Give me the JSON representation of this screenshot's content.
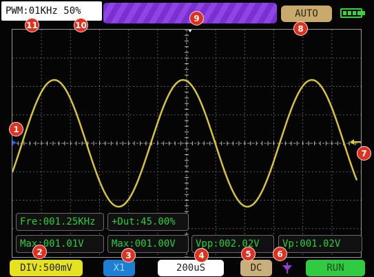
{
  "status": {
    "pwm_label": "PWM:01KHz 50%",
    "trigger_mode": "AUTO"
  },
  "measurements": {
    "frequency": "Fre:001.25KHz",
    "duty": "+Dut:45.00%",
    "max_left": "Max:001.01V",
    "max_right": "Max:001.00V",
    "vpp": "Vpp:002.02V",
    "vp": "Vp:001.02V"
  },
  "bottom_bar": {
    "volts_div": "DIV:500mV",
    "probe": "X1",
    "timebase": "200uS",
    "coupling": "DC",
    "run_state": "RUN"
  },
  "badges": [
    "1",
    "2",
    "3",
    "4",
    "5",
    "6",
    "7",
    "8",
    "9",
    "10",
    "11"
  ],
  "colors": {
    "waveform": "#d8c43a",
    "measurement_text": "#28d03a",
    "badge": "#e0301e",
    "trigger_bar": "#8a3fe0",
    "run": "#31cb42",
    "volts_div": "#e6e21d",
    "probe": "#1d7fd3",
    "channel_marker": "#2060ff",
    "trigger_level_marker": "#e6d21d"
  },
  "icons": {
    "battery": "battery-full-icon",
    "trigger_edge": "falling-edge-trigger-icon",
    "channel_marker": "channel-ground-marker-icon",
    "trigger_position": "trigger-position-marker-icon",
    "trigger_level": "trigger-level-arrow-icon"
  }
}
